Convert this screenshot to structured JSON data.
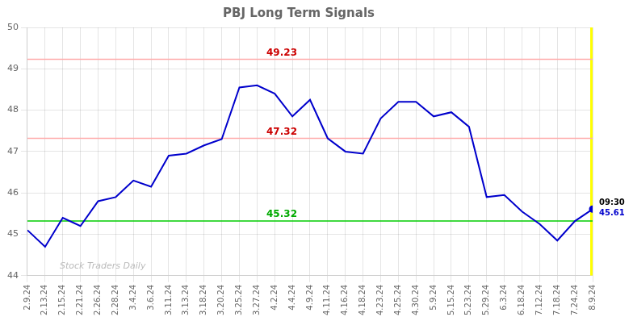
{
  "chart_data": {
    "type": "line",
    "title": "PBJ Long Term Signals",
    "categories": [
      "2.9.24",
      "2.13.24",
      "2.15.24",
      "2.21.24",
      "2.26.24",
      "2.28.24",
      "3.4.24",
      "3.6.24",
      "3.11.24",
      "3.13.24",
      "3.18.24",
      "3.20.24",
      "3.25.24",
      "3.27.24",
      "4.2.24",
      "4.4.24",
      "4.9.24",
      "4.11.24",
      "4.16.24",
      "4.18.24",
      "4.23.24",
      "4.25.24",
      "4.30.24",
      "5.9.24",
      "5.15.24",
      "5.23.24",
      "5.29.24",
      "6.3.24",
      "6.18.24",
      "7.12.24",
      "7.18.24",
      "7.24.24",
      "8.9.24"
    ],
    "series": [
      {
        "values": [
          45.1,
          44.7,
          45.4,
          45.2,
          45.8,
          45.9,
          46.3,
          46.15,
          46.9,
          46.95,
          47.15,
          47.3,
          48.55,
          48.6,
          48.4,
          47.85,
          48.25,
          47.32,
          47.0,
          46.95,
          47.8,
          48.2,
          48.2,
          47.85,
          47.95,
          47.6,
          45.9,
          45.95,
          45.55,
          45.25,
          44.85,
          45.32,
          45.61
        ],
        "color": "#0000cc"
      }
    ],
    "ylim": [
      44.0,
      50.0
    ],
    "yticks": [
      44,
      45,
      46,
      47,
      48,
      49,
      50
    ],
    "grid": true,
    "reference_lines": [
      {
        "value": 49.23,
        "label": "49.23",
        "color": "#ffaaaa",
        "label_color": "#cc0000"
      },
      {
        "value": 47.32,
        "label": "47.32",
        "color": "#ffaaaa",
        "label_color": "#cc0000"
      },
      {
        "value": 45.32,
        "label": "45.32",
        "color": "#00cc00",
        "label_color": "#00aa00"
      }
    ],
    "highlight": {
      "category": "8.9.24",
      "color": "#ffff00"
    },
    "annotations": [
      {
        "text": "Stock Traders Daily",
        "color": "#bbbbbb"
      }
    ],
    "last_point_labels": [
      {
        "text": "09:30",
        "color": "#000000"
      },
      {
        "text": "45.61",
        "color": "#0000cc"
      }
    ]
  }
}
